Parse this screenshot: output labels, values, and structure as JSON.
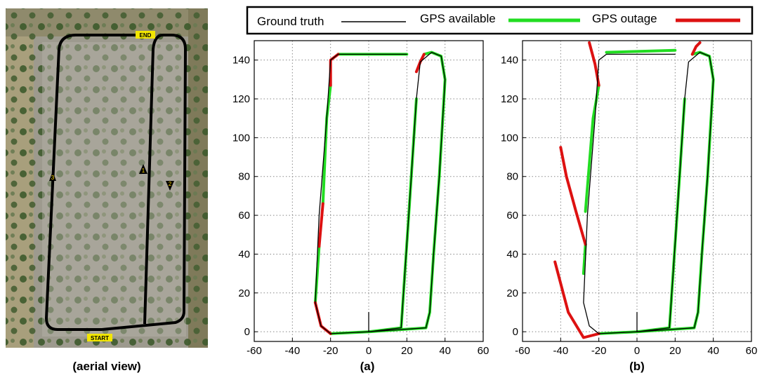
{
  "legend": {
    "items": [
      {
        "label": "Ground truth",
        "color": "#000000"
      },
      {
        "label": "GPS available",
        "color": "#22dd22"
      },
      {
        "label": "GPS outage",
        "color": "#dd1111"
      }
    ]
  },
  "aerial": {
    "caption": "(aerial view)",
    "markers": {
      "start": "START",
      "end": "END"
    },
    "waypoints": [
      "1",
      "2",
      "3"
    ]
  },
  "colors": {
    "ground_truth": "#000000",
    "gps_available": "#22dd22",
    "gps_outage": "#dd1111",
    "grid": "#888888"
  },
  "chart_data": [
    {
      "type": "line",
      "caption": "(a)",
      "xlim": [
        -60,
        60
      ],
      "ylim": [
        -5,
        150
      ],
      "xticks": [
        -60,
        -40,
        -20,
        0,
        20,
        40,
        60
      ],
      "yticks": [
        0,
        20,
        40,
        60,
        80,
        100,
        120,
        140
      ],
      "grid": true,
      "series": [
        {
          "name": "Ground truth",
          "segments": [
            [
              [
                0,
                0
              ],
              [
                30,
                2
              ],
              [
                32,
                10
              ],
              [
                34,
                40
              ],
              [
                37,
                80
              ],
              [
                40,
                130
              ],
              [
                38,
                142
              ],
              [
                33,
                144
              ],
              [
                27,
                139
              ],
              [
                25,
                120
              ],
              [
                21,
                60
              ],
              [
                17,
                2
              ],
              [
                0,
                0
              ],
              [
                -20,
                -1
              ],
              [
                -25,
                3
              ],
              [
                -28,
                15
              ],
              [
                -26,
                60
              ],
              [
                -22,
                110
              ],
              [
                -20,
                140
              ],
              [
                -16,
                143
              ],
              [
                20,
                143
              ]
            ],
            [
              [
                0,
                0
              ],
              [
                0,
                10
              ]
            ]
          ]
        },
        {
          "name": "GPS available",
          "segments": [
            [
              [
                0,
                0
              ],
              [
                30,
                2
              ],
              [
                32,
                10
              ],
              [
                34,
                40
              ],
              [
                37,
                80
              ],
              [
                40,
                130
              ],
              [
                38,
                142
              ],
              [
                33,
                144
              ],
              [
                29,
                143
              ]
            ],
            [
              [
                25,
                120
              ],
              [
                21,
                60
              ],
              [
                17,
                2
              ],
              [
                0,
                0
              ],
              [
                -20,
                -1
              ]
            ],
            [
              [
                -28,
                15
              ],
              [
                -26,
                44
              ]
            ],
            [
              [
                -24,
                66
              ],
              [
                -22,
                110
              ],
              [
                -20,
                127
              ]
            ],
            [
              [
                -16,
                143
              ],
              [
                20,
                143
              ]
            ]
          ]
        },
        {
          "name": "GPS outage",
          "segments": [
            [
              [
                29,
                143
              ],
              [
                27,
                139
              ],
              [
                25,
                134
              ]
            ],
            [
              [
                -20,
                -1
              ],
              [
                -25,
                3
              ],
              [
                -28,
                15
              ]
            ],
            [
              [
                -26,
                44
              ],
              [
                -24,
                66
              ]
            ],
            [
              [
                -20,
                127
              ],
              [
                -20,
                140
              ],
              [
                -16,
                143
              ]
            ]
          ]
        }
      ]
    },
    {
      "type": "line",
      "caption": "(b)",
      "xlim": [
        -60,
        60
      ],
      "ylim": [
        -5,
        150
      ],
      "xticks": [
        -60,
        -40,
        -20,
        0,
        20,
        40,
        60
      ],
      "yticks": [
        0,
        20,
        40,
        60,
        80,
        100,
        120,
        140
      ],
      "grid": true,
      "series": [
        {
          "name": "Ground truth",
          "segments": [
            [
              [
                0,
                0
              ],
              [
                30,
                2
              ],
              [
                32,
                10
              ],
              [
                34,
                40
              ],
              [
                37,
                80
              ],
              [
                40,
                130
              ],
              [
                38,
                142
              ],
              [
                33,
                144
              ],
              [
                27,
                139
              ],
              [
                25,
                120
              ],
              [
                21,
                60
              ],
              [
                17,
                2
              ],
              [
                0,
                0
              ],
              [
                -20,
                -1
              ],
              [
                -25,
                3
              ],
              [
                -28,
                15
              ],
              [
                -26,
                60
              ],
              [
                -22,
                110
              ],
              [
                -20,
                140
              ],
              [
                -16,
                143
              ],
              [
                20,
                143
              ]
            ],
            [
              [
                0,
                0
              ],
              [
                0,
                10
              ]
            ]
          ]
        },
        {
          "name": "GPS available",
          "segments": [
            [
              [
                0,
                0
              ],
              [
                30,
                2
              ],
              [
                32,
                10
              ],
              [
                34,
                40
              ],
              [
                37,
                80
              ],
              [
                40,
                130
              ],
              [
                38,
                142
              ],
              [
                33,
                144
              ],
              [
                29,
                143
              ]
            ],
            [
              [
                25,
                120
              ],
              [
                21,
                60
              ],
              [
                17,
                2
              ],
              [
                0,
                0
              ],
              [
                -20,
                -1
              ]
            ],
            [
              [
                -28,
                30
              ],
              [
                -27,
                45
              ]
            ],
            [
              [
                -27,
                62
              ],
              [
                -23,
                110
              ],
              [
                -20,
                127
              ]
            ],
            [
              [
                -16,
                144
              ],
              [
                20,
                145
              ]
            ]
          ]
        },
        {
          "name": "GPS outage",
          "segments": [
            [
              [
                29,
                143
              ],
              [
                31,
                147
              ],
              [
                33,
                149
              ]
            ],
            [
              [
                -20,
                -1
              ],
              [
                -28,
                -3
              ],
              [
                -36,
                10
              ],
              [
                -43,
                36
              ]
            ],
            [
              [
                -27,
                45
              ],
              [
                -32,
                62
              ],
              [
                -37,
                80
              ],
              [
                -40,
                95
              ]
            ],
            [
              [
                -20,
                127
              ],
              [
                -22,
                138
              ],
              [
                -25,
                149
              ]
            ]
          ]
        }
      ]
    }
  ]
}
